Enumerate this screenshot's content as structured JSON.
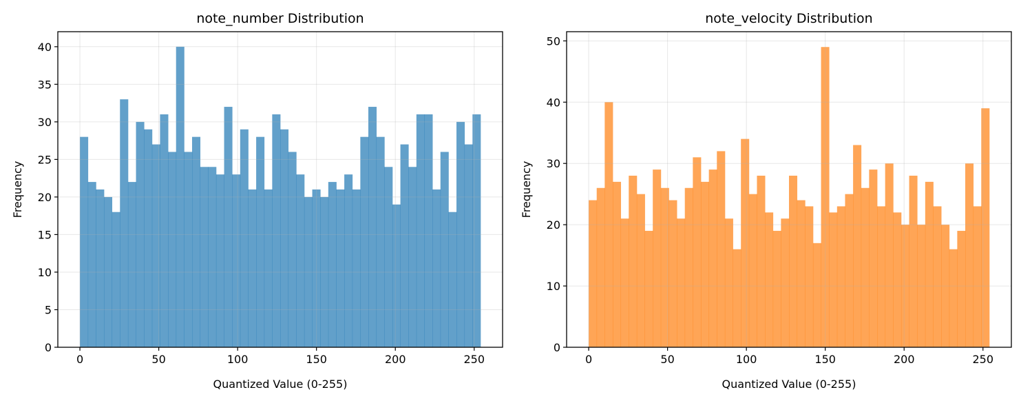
{
  "chart_data": [
    {
      "type": "bar",
      "title": "note_number Distribution",
      "xlabel": "Quantized Value (0-255)",
      "ylabel": "Frequency",
      "xlim": [
        -14,
        268
      ],
      "ylim": [
        0,
        42
      ],
      "xticks": [
        0,
        50,
        100,
        150,
        200,
        250
      ],
      "yticks": [
        0,
        5,
        10,
        15,
        20,
        25,
        30,
        35,
        40
      ],
      "grid": true,
      "color": "#1f77b4",
      "alpha": 0.7,
      "bin_start": 0,
      "bin_width": 5.08,
      "values": [
        28,
        22,
        21,
        20,
        18,
        33,
        22,
        30,
        29,
        27,
        31,
        26,
        40,
        26,
        28,
        24,
        24,
        23,
        32,
        23,
        29,
        21,
        28,
        21,
        31,
        29,
        26,
        23,
        20,
        21,
        20,
        22,
        21,
        23,
        21,
        28,
        32,
        28,
        24,
        19,
        27,
        24,
        31,
        31,
        21,
        26,
        18,
        30,
        27,
        31
      ]
    },
    {
      "type": "bar",
      "title": "note_velocity Distribution",
      "xlabel": "Quantized Value (0-255)",
      "ylabel": "Frequency",
      "xlim": [
        -14,
        268
      ],
      "ylim": [
        0,
        51.5
      ],
      "xticks": [
        0,
        50,
        100,
        150,
        200,
        250
      ],
      "yticks": [
        0,
        10,
        20,
        30,
        40,
        50
      ],
      "grid": true,
      "color": "#ff7f0e",
      "alpha": 0.7,
      "bin_start": 0,
      "bin_width": 5.08,
      "values": [
        24,
        26,
        40,
        27,
        21,
        28,
        25,
        19,
        29,
        26,
        24,
        21,
        26,
        31,
        27,
        29,
        32,
        21,
        16,
        34,
        25,
        28,
        22,
        19,
        21,
        28,
        24,
        23,
        17,
        49,
        22,
        23,
        25,
        33,
        26,
        29,
        23,
        30,
        22,
        20,
        28,
        20,
        27,
        23,
        20,
        16,
        19,
        30,
        23,
        39
      ]
    }
  ]
}
